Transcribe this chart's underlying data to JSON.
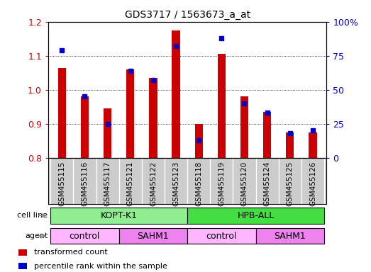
{
  "title": "GDS3717 / 1563673_a_at",
  "samples": [
    "GSM455115",
    "GSM455116",
    "GSM455117",
    "GSM455121",
    "GSM455122",
    "GSM455123",
    "GSM455118",
    "GSM455119",
    "GSM455120",
    "GSM455124",
    "GSM455125",
    "GSM455126"
  ],
  "transformed_count": [
    1.065,
    0.98,
    0.945,
    1.06,
    1.035,
    1.175,
    0.9,
    1.105,
    0.98,
    0.935,
    0.875,
    0.875
  ],
  "percentile_rank": [
    79,
    45,
    25,
    64,
    57,
    82,
    13,
    88,
    40,
    33,
    18,
    20
  ],
  "ylim_left": [
    0.8,
    1.2
  ],
  "ylim_right": [
    0,
    100
  ],
  "yticks_left": [
    0.8,
    0.9,
    1.0,
    1.1,
    1.2
  ],
  "yticks_right": [
    0,
    25,
    50,
    75,
    100
  ],
  "bar_color": "#cc0000",
  "dot_color": "#0000cc",
  "cell_line_labels": [
    "KOPT-K1",
    "HPB-ALL"
  ],
  "cell_line_spans": [
    [
      0,
      6
    ],
    [
      6,
      12
    ]
  ],
  "cell_line_color_left": "#90ee90",
  "cell_line_color_right": "#44dd44",
  "agent_groups": [
    {
      "label": "control",
      "span": [
        0,
        3
      ],
      "color": "#ffb6ff"
    },
    {
      "label": "SAHM1",
      "span": [
        3,
        6
      ],
      "color": "#ee82ee"
    },
    {
      "label": "control",
      "span": [
        6,
        9
      ],
      "color": "#ffb6ff"
    },
    {
      "label": "SAHM1",
      "span": [
        9,
        12
      ],
      "color": "#ee82ee"
    }
  ],
  "legend_items": [
    {
      "label": "transformed count",
      "color": "#cc0000"
    },
    {
      "label": "percentile rank within the sample",
      "color": "#0000cc"
    }
  ],
  "left_ylabel_color": "#cc0000",
  "right_ylabel_color": "#0000cc",
  "background_color": "#ffffff",
  "plot_bg_color": "#ffffff",
  "xtick_bg_color": "#cccccc",
  "bar_width": 0.35
}
